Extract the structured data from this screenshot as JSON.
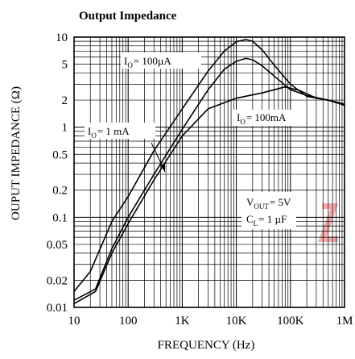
{
  "chart_data": {
    "type": "line",
    "title": "Output Impedance",
    "xlabel": "FREQUENCY (Hz)",
    "ylabel": "OUPUT IMPEDANCE (Ω)",
    "xscale": "log",
    "yscale": "log",
    "xlim": [
      10,
      1000000
    ],
    "ylim": [
      0.01,
      10
    ],
    "grid": true,
    "x_ticks": [
      {
        "value": 10,
        "label": "10"
      },
      {
        "value": 100,
        "label": "100"
      },
      {
        "value": 1000,
        "label": "1K"
      },
      {
        "value": 10000,
        "label": "10K"
      },
      {
        "value": 100000,
        "label": "100K"
      },
      {
        "value": 1000000,
        "label": "1M"
      }
    ],
    "y_ticks": [
      {
        "value": 10,
        "label": "10"
      },
      {
        "value": 5,
        "label": "5"
      },
      {
        "value": 2,
        "label": "2"
      },
      {
        "value": 1,
        "label": "1"
      },
      {
        "value": 0.5,
        "label": "0.5"
      },
      {
        "value": 0.2,
        "label": "0.2"
      },
      {
        "value": 0.1,
        "label": "0.1"
      },
      {
        "value": 0.05,
        "label": "0.05"
      },
      {
        "value": 0.02,
        "label": "0.02"
      },
      {
        "value": 0.01,
        "label": "0.01"
      }
    ],
    "series": [
      {
        "name": "I_O = 100µA",
        "points": [
          [
            10,
            0.015
          ],
          [
            20,
            0.025
          ],
          [
            50,
            0.09
          ],
          [
            100,
            0.17
          ],
          [
            300,
            0.55
          ],
          [
            1000,
            1.6
          ],
          [
            3000,
            4.2
          ],
          [
            6000,
            7.0
          ],
          [
            10000,
            8.9
          ],
          [
            15000,
            9.4
          ],
          [
            20000,
            9.0
          ],
          [
            30000,
            7.2
          ],
          [
            50000,
            4.9
          ],
          [
            100000,
            3.0
          ],
          [
            200000,
            2.2
          ],
          [
            500000,
            2.0
          ],
          [
            1000000,
            1.75
          ]
        ]
      },
      {
        "name": "I_O = 1 mA",
        "points": [
          [
            10,
            0.012
          ],
          [
            25,
            0.016
          ],
          [
            50,
            0.045
          ],
          [
            100,
            0.1
          ],
          [
            300,
            0.3
          ],
          [
            1000,
            0.95
          ],
          [
            3000,
            2.6
          ],
          [
            6000,
            4.4
          ],
          [
            10000,
            5.4
          ],
          [
            15000,
            5.8
          ],
          [
            20000,
            5.6
          ],
          [
            30000,
            4.8
          ],
          [
            50000,
            3.7
          ],
          [
            100000,
            2.6
          ],
          [
            200000,
            2.25
          ],
          [
            500000,
            2.0
          ],
          [
            1000000,
            1.8
          ]
        ]
      },
      {
        "name": "I_O = 100mA",
        "points": [
          [
            10,
            0.011
          ],
          [
            25,
            0.015
          ],
          [
            50,
            0.04
          ],
          [
            100,
            0.085
          ],
          [
            300,
            0.26
          ],
          [
            1000,
            0.8
          ],
          [
            3000,
            1.6
          ],
          [
            10000,
            2.1
          ],
          [
            30000,
            2.4
          ],
          [
            80000,
            2.8
          ],
          [
            150000,
            2.55
          ],
          [
            300000,
            2.1
          ],
          [
            600000,
            1.95
          ],
          [
            1000000,
            1.8
          ]
        ]
      }
    ],
    "annotations": {
      "io_100ua": {
        "main": "I",
        "sub": "O",
        "rest": "= 100µA"
      },
      "io_1ma": {
        "main": "I",
        "sub": "O",
        "rest": "= 1 mA"
      },
      "io_100ma": {
        "main": "I",
        "sub": "O",
        "rest": "= 100mA"
      },
      "vout": {
        "main": "V",
        "sub": "OUT",
        "rest": "= 5V"
      },
      "cl": {
        "main": "C",
        "sub": "L",
        "rest": "= 1 µF"
      }
    },
    "colors": {
      "line": "#000000",
      "grid": "#000000",
      "watermark": "#f08a8a"
    }
  }
}
